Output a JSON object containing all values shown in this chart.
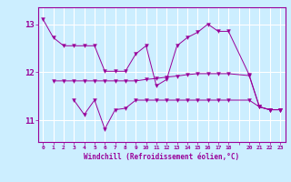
{
  "title": "",
  "xlabel": "Windchill (Refroidissement éolien,°C)",
  "bg_color": "#cceeff",
  "line_color": "#990099",
  "grid_color": "#ffffff",
  "xlim": [
    -0.5,
    23.5
  ],
  "ylim": [
    10.55,
    13.35
  ],
  "yticks": [
    11,
    12,
    13
  ],
  "xticks": [
    0,
    1,
    2,
    3,
    4,
    5,
    6,
    7,
    8,
    9,
    10,
    11,
    12,
    13,
    14,
    15,
    16,
    17,
    18,
    19,
    20,
    21,
    22,
    23
  ],
  "xtick_labels": [
    "0",
    "1",
    "2",
    "3",
    "4",
    "5",
    "6",
    "7",
    "8",
    "9",
    "10",
    "11",
    "12",
    "13",
    "14",
    "15",
    "16",
    "17",
    "18",
    "",
    "20",
    "21",
    "22",
    "23"
  ],
  "series": [
    {
      "x": [
        0,
        1,
        2,
        3,
        4,
        5,
        6,
        7,
        8,
        9,
        10,
        11,
        12,
        13,
        14,
        15,
        16,
        17,
        18,
        20,
        21,
        22,
        23
      ],
      "y": [
        13.1,
        12.72,
        12.55,
        12.55,
        12.55,
        12.55,
        12.02,
        12.02,
        12.02,
        12.38,
        12.55,
        11.72,
        11.85,
        12.55,
        12.72,
        12.83,
        13.0,
        12.85,
        12.85,
        11.95,
        11.28,
        11.22,
        11.22
      ]
    },
    {
      "x": [
        1,
        2,
        3,
        4,
        5,
        6,
        7,
        8,
        9,
        10,
        11,
        12,
        13,
        14,
        15,
        16,
        17,
        18,
        20,
        21,
        22,
        23
      ],
      "y": [
        11.82,
        11.82,
        11.82,
        11.82,
        11.82,
        11.82,
        11.82,
        11.82,
        11.82,
        11.85,
        11.87,
        11.9,
        11.92,
        11.95,
        11.97,
        11.97,
        11.97,
        11.97,
        11.93,
        11.28,
        11.22,
        11.22
      ]
    },
    {
      "x": [
        3,
        4,
        5,
        6,
        7,
        8,
        9,
        10,
        11,
        12,
        13,
        14,
        15,
        16,
        17,
        18,
        20,
        21,
        22,
        23
      ],
      "y": [
        11.42,
        11.12,
        11.42,
        10.82,
        11.22,
        11.25,
        11.42,
        11.42,
        11.42,
        11.42,
        11.42,
        11.42,
        11.42,
        11.42,
        11.42,
        11.42,
        11.42,
        11.28,
        11.22,
        11.22
      ]
    }
  ]
}
